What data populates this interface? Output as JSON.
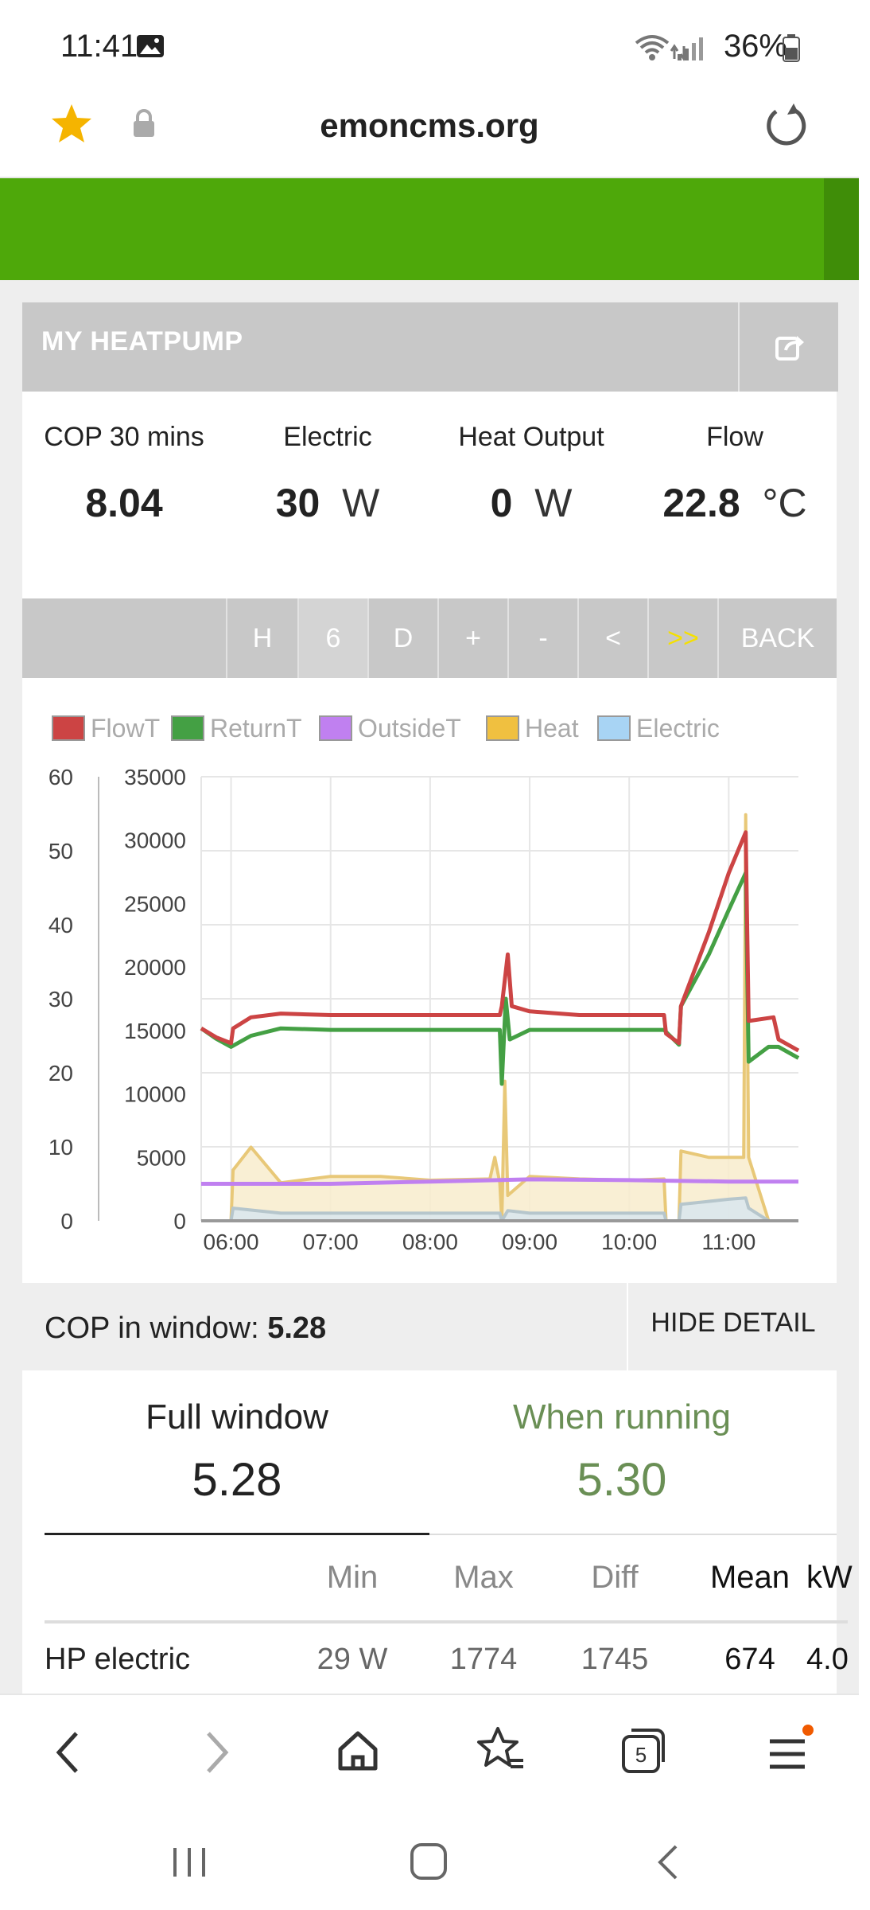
{
  "status_bar": {
    "time": "11:41",
    "battery": "36%"
  },
  "browser": {
    "domain": "emoncms.org"
  },
  "panel": {
    "title": "MY HEATPUMP"
  },
  "stats": [
    {
      "label": "COP 30 mins",
      "value": "8.04",
      "unit": ""
    },
    {
      "label": "Electric",
      "value": "30",
      "unit": "W"
    },
    {
      "label": "Heat Output",
      "value": "0",
      "unit": "W"
    },
    {
      "label": "Flow",
      "value": "22.8",
      "unit": "°C"
    }
  ],
  "toolbar": {
    "buttons": [
      "H",
      "6",
      "D",
      "+",
      "-",
      "<",
      ">>",
      "BACK"
    ]
  },
  "chart_data": {
    "type": "line",
    "legend": [
      "FlowT",
      "ReturnT",
      "OutsideT",
      "Heat",
      "Electric"
    ],
    "legend_placement": "top",
    "colors": {
      "FlowT": "#cc4444",
      "ReturnT": "#44a044",
      "OutsideT": "#c080f0",
      "Heat": "#f0c040",
      "Electric": "#a8d4f4"
    },
    "y_left": {
      "ticks": [
        "0",
        "10",
        "20",
        "30",
        "40",
        "50",
        "60"
      ],
      "range": [
        0,
        60
      ]
    },
    "y_right": {
      "ticks": [
        "0",
        "5000",
        "10000",
        "15000",
        "20000",
        "25000",
        "30000",
        "35000"
      ],
      "range": [
        0,
        35000
      ]
    },
    "x_ticks": [
      "06:00",
      "07:00",
      "08:00",
      "09:00",
      "10:00",
      "11:00"
    ],
    "x_range_hours": [
      5.7,
      11.7
    ],
    "grid": true,
    "series": [
      {
        "name": "FlowT",
        "axis": "left",
        "points": [
          [
            5.7,
            26
          ],
          [
            5.85,
            24.8
          ],
          [
            6.0,
            24
          ],
          [
            6.02,
            26
          ],
          [
            6.2,
            27.5
          ],
          [
            6.5,
            28
          ],
          [
            7.0,
            27.8
          ],
          [
            8.0,
            27.8
          ],
          [
            8.7,
            27.8
          ],
          [
            8.72,
            29
          ],
          [
            8.78,
            36
          ],
          [
            8.82,
            29
          ],
          [
            9.0,
            28.3
          ],
          [
            9.5,
            27.8
          ],
          [
            10.0,
            27.8
          ],
          [
            10.35,
            27.8
          ],
          [
            10.37,
            25.3
          ],
          [
            10.5,
            24
          ],
          [
            10.52,
            29
          ],
          [
            10.8,
            39
          ],
          [
            11.0,
            47
          ],
          [
            11.17,
            52.5
          ],
          [
            11.2,
            27
          ],
          [
            11.45,
            27.5
          ],
          [
            11.5,
            24.5
          ],
          [
            11.7,
            23
          ]
        ]
      },
      {
        "name": "ReturnT",
        "axis": "left",
        "points": [
          [
            5.7,
            26
          ],
          [
            5.85,
            24.6
          ],
          [
            6.0,
            23.5
          ],
          [
            6.2,
            25
          ],
          [
            6.5,
            26
          ],
          [
            7.0,
            25.8
          ],
          [
            8.0,
            25.8
          ],
          [
            8.7,
            25.8
          ],
          [
            8.72,
            18.5
          ],
          [
            8.76,
            30
          ],
          [
            8.8,
            24.5
          ],
          [
            9.0,
            25.8
          ],
          [
            9.5,
            25.8
          ],
          [
            10.0,
            25.8
          ],
          [
            10.35,
            25.8
          ],
          [
            10.5,
            23.8
          ],
          [
            10.52,
            29
          ],
          [
            10.8,
            36
          ],
          [
            11.0,
            42
          ],
          [
            11.17,
            47
          ],
          [
            11.2,
            21.5
          ],
          [
            11.4,
            23.5
          ],
          [
            11.5,
            23.5
          ],
          [
            11.7,
            22
          ]
        ]
      },
      {
        "name": "OutsideT",
        "axis": "left",
        "points": [
          [
            5.7,
            5
          ],
          [
            7.0,
            5
          ],
          [
            8.0,
            5.3
          ],
          [
            9.0,
            5.6
          ],
          [
            10.0,
            5.5
          ],
          [
            11.0,
            5.3
          ],
          [
            11.7,
            5.3
          ]
        ]
      },
      {
        "name": "Heat",
        "axis": "right",
        "points": [
          [
            5.7,
            0
          ],
          [
            6.0,
            0
          ],
          [
            6.02,
            4000
          ],
          [
            6.2,
            5800
          ],
          [
            6.5,
            3000
          ],
          [
            7.0,
            3500
          ],
          [
            7.5,
            3500
          ],
          [
            8.0,
            3200
          ],
          [
            8.6,
            3300
          ],
          [
            8.65,
            5000
          ],
          [
            8.7,
            3000
          ],
          [
            8.72,
            0
          ],
          [
            8.75,
            11000
          ],
          [
            8.78,
            2000
          ],
          [
            9.0,
            3500
          ],
          [
            9.5,
            3300
          ],
          [
            10.0,
            3200
          ],
          [
            10.35,
            3300
          ],
          [
            10.37,
            0
          ],
          [
            10.5,
            0
          ],
          [
            10.52,
            5500
          ],
          [
            10.8,
            5000
          ],
          [
            11.0,
            5000
          ],
          [
            11.15,
            5000
          ],
          [
            11.17,
            32000
          ],
          [
            11.2,
            5000
          ],
          [
            11.4,
            0
          ],
          [
            11.7,
            0
          ]
        ]
      },
      {
        "name": "Electric",
        "axis": "right",
        "points": [
          [
            5.7,
            0
          ],
          [
            6.0,
            0
          ],
          [
            6.02,
            1000
          ],
          [
            6.5,
            600
          ],
          [
            7.0,
            600
          ],
          [
            8.0,
            600
          ],
          [
            8.7,
            600
          ],
          [
            8.72,
            0
          ],
          [
            8.78,
            800
          ],
          [
            9.0,
            600
          ],
          [
            10.0,
            600
          ],
          [
            10.35,
            600
          ],
          [
            10.37,
            0
          ],
          [
            10.5,
            0
          ],
          [
            10.52,
            1300
          ],
          [
            11.0,
            1700
          ],
          [
            11.17,
            1800
          ],
          [
            11.2,
            1000
          ],
          [
            11.4,
            0
          ],
          [
            11.7,
            0
          ]
        ]
      }
    ]
  },
  "cop": {
    "label": "COP in window:",
    "value": "5.28",
    "hide_label": "HIDE DETAIL"
  },
  "tabs": [
    {
      "label": "Full window",
      "value": "5.28"
    },
    {
      "label": "When running",
      "value": "5.30"
    }
  ],
  "table": {
    "headers": [
      "Min",
      "Max",
      "Diff",
      "Mean",
      "kW"
    ],
    "rows": [
      {
        "name": "HP electric",
        "min": "29 W",
        "max": "1774",
        "diff": "1745",
        "mean": "674",
        "kw": "4.0"
      }
    ]
  },
  "colors": {
    "accent_green": "#4ea80a",
    "running_green": "#6a8f55",
    "toolbar_grey": "#c8c8c8",
    "highlight_yellow": "#f5e000"
  }
}
